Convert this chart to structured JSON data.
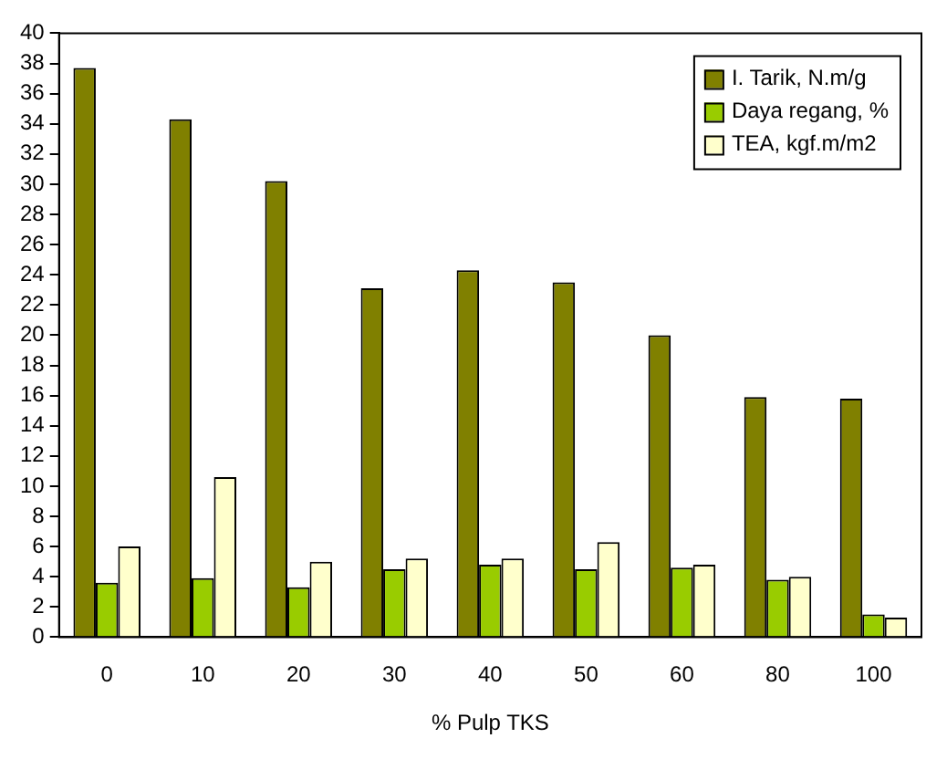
{
  "chart_data": {
    "type": "bar",
    "xlabel": "% Pulp TKS",
    "categories": [
      "0",
      "10",
      "20",
      "30",
      "40",
      "50",
      "60",
      "80",
      "100"
    ],
    "series": [
      {
        "name": "I. Tarik, N.m/g",
        "color": "#808000",
        "values": [
          37.7,
          34.3,
          30.2,
          23.1,
          24.3,
          23.5,
          20.0,
          15.9,
          15.8
        ]
      },
      {
        "name": "Daya regang, %",
        "color": "#99cc00",
        "values": [
          3.6,
          3.9,
          3.3,
          4.5,
          4.8,
          4.5,
          4.6,
          3.8,
          1.5
        ]
      },
      {
        "name": "TEA, kgf.m/m2",
        "color": "#ffffcc",
        "values": [
          6.0,
          10.6,
          5.0,
          5.2,
          5.2,
          6.3,
          4.8,
          4.0,
          1.3
        ]
      }
    ],
    "ylim": [
      0,
      40
    ],
    "yticks": [
      0,
      2,
      4,
      6,
      8,
      10,
      12,
      14,
      16,
      18,
      20,
      22,
      24,
      26,
      28,
      30,
      32,
      34,
      36,
      38,
      40
    ],
    "grid": false,
    "legend": "top right"
  }
}
